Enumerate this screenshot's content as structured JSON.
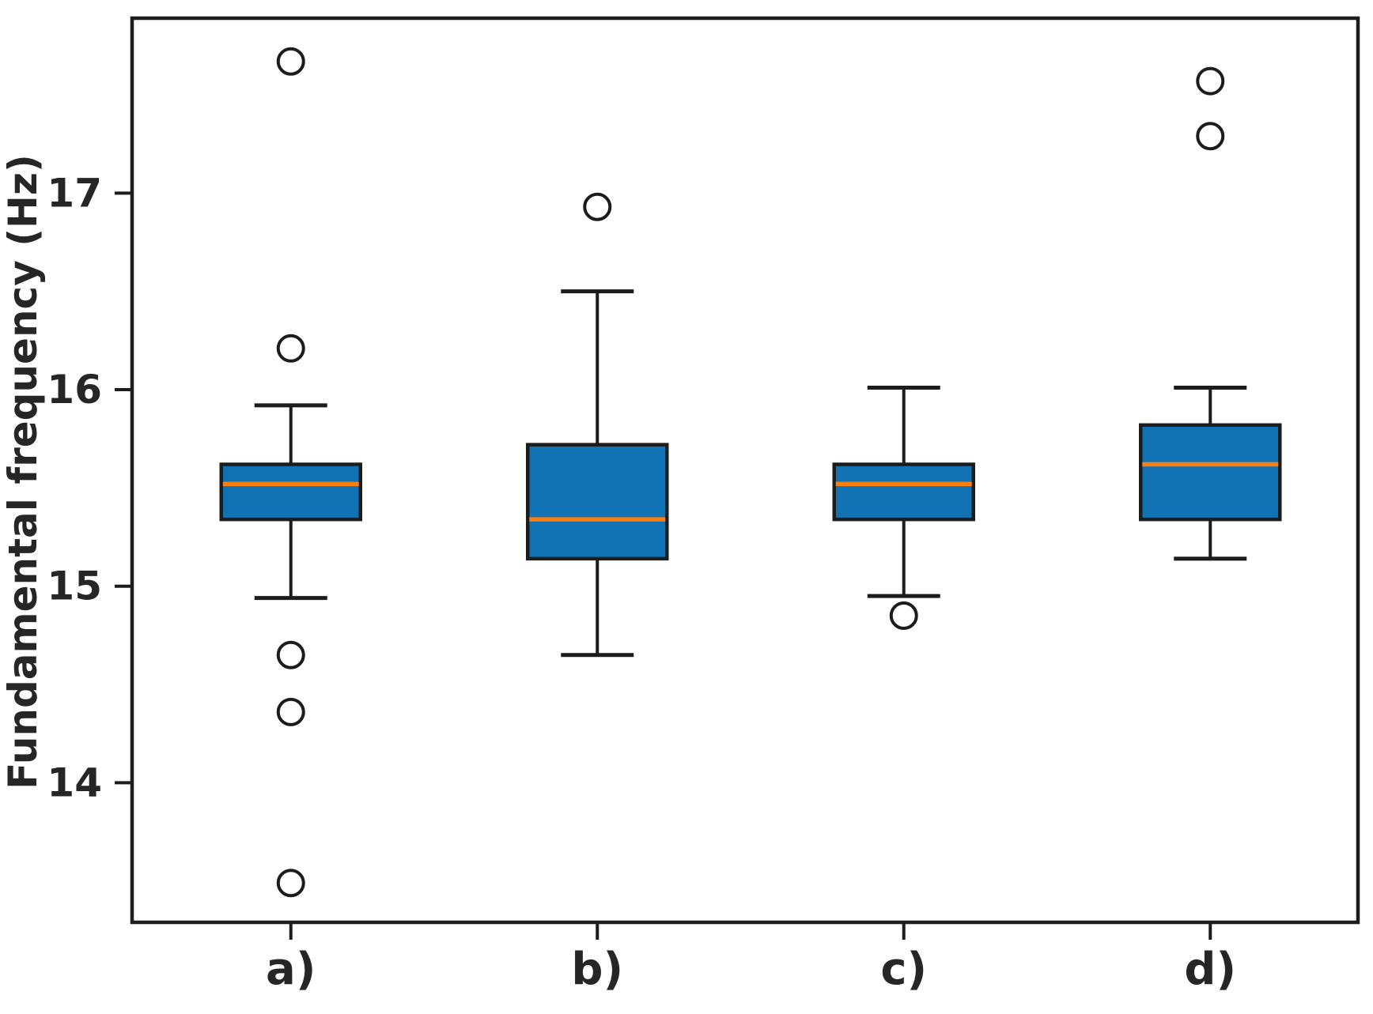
{
  "chart_data": {
    "type": "boxplot",
    "title": "",
    "xlabel": "",
    "ylabel": "Fundamental frequency (Hz)",
    "ylim": [
      13.29,
      17.89
    ],
    "yticks": [
      14,
      15,
      16,
      17
    ],
    "grid": false,
    "categories": [
      "a)",
      "b)",
      "c)",
      "d)"
    ],
    "series": [
      {
        "category": "a)",
        "whisker_low": 14.94,
        "q1": 15.34,
        "median": 15.52,
        "q3": 15.62,
        "whisker_high": 15.92,
        "outliers": [
          13.49,
          14.36,
          14.65,
          16.21,
          17.67
        ]
      },
      {
        "category": "b)",
        "whisker_low": 14.65,
        "q1": 15.14,
        "median": 15.34,
        "q3": 15.72,
        "whisker_high": 16.5,
        "outliers": [
          16.93
        ]
      },
      {
        "category": "c)",
        "whisker_low": 14.95,
        "q1": 15.34,
        "median": 15.52,
        "q3": 15.62,
        "whisker_high": 16.01,
        "outliers": [
          14.85
        ]
      },
      {
        "category": "d)",
        "whisker_low": 15.14,
        "q1": 15.34,
        "median": 15.62,
        "q3": 15.82,
        "whisker_high": 16.01,
        "outliers": [
          17.29,
          17.57
        ]
      }
    ],
    "colors": {
      "box_fill": "#1273b4",
      "median_line": "#ff7f0e",
      "line": "#1c1c1c",
      "text": "#262626",
      "background": "#ffffff"
    }
  }
}
